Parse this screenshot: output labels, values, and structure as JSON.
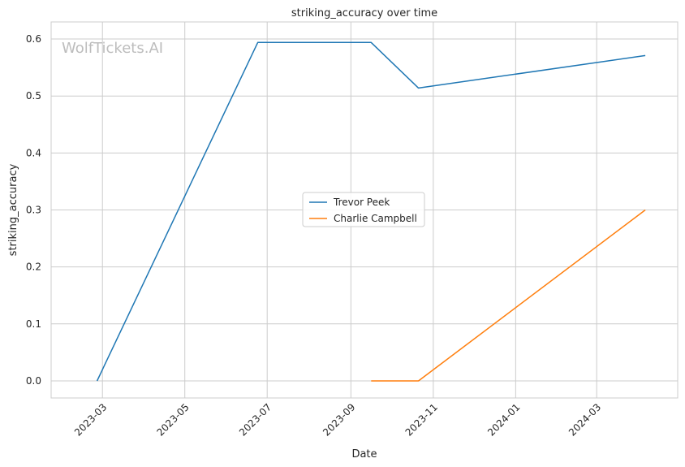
{
  "chart_data": {
    "type": "line",
    "title": "striking_accuracy over time",
    "xlabel": "Date",
    "ylabel": "striking_accuracy",
    "watermark": "WolfTickets.AI",
    "x_axis": {
      "type": "date",
      "range": [
        "2023-01-22",
        "2024-04-30"
      ],
      "ticks": [
        "2023-03-01",
        "2023-05-01",
        "2023-07-01",
        "2023-09-01",
        "2023-11-01",
        "2024-01-01",
        "2024-03-01"
      ],
      "tick_labels": [
        "2023-03",
        "2023-05",
        "2023-07",
        "2023-09",
        "2023-11",
        "2024-01",
        "2024-03"
      ]
    },
    "y_axis": {
      "range": [
        -0.03,
        0.63
      ],
      "ticks": [
        0.0,
        0.1,
        0.2,
        0.3,
        0.4,
        0.5,
        0.6
      ],
      "tick_labels": [
        "0.0",
        "0.1",
        "0.2",
        "0.3",
        "0.4",
        "0.5",
        "0.6"
      ]
    },
    "grid": true,
    "legend_position": "center",
    "series": [
      {
        "name": "Trevor Peek",
        "color": "#1f77b4",
        "points": [
          {
            "x": "2023-02-25",
            "y": 0.0
          },
          {
            "x": "2023-06-24",
            "y": 0.594
          },
          {
            "x": "2023-09-16",
            "y": 0.594
          },
          {
            "x": "2023-10-21",
            "y": 0.514
          },
          {
            "x": "2024-04-06",
            "y": 0.571
          }
        ]
      },
      {
        "name": "Charlie Campbell",
        "color": "#ff7f0e",
        "points": [
          {
            "x": "2023-09-16",
            "y": 0.0
          },
          {
            "x": "2023-10-21",
            "y": 0.0
          },
          {
            "x": "2024-04-06",
            "y": 0.3
          }
        ]
      }
    ]
  }
}
